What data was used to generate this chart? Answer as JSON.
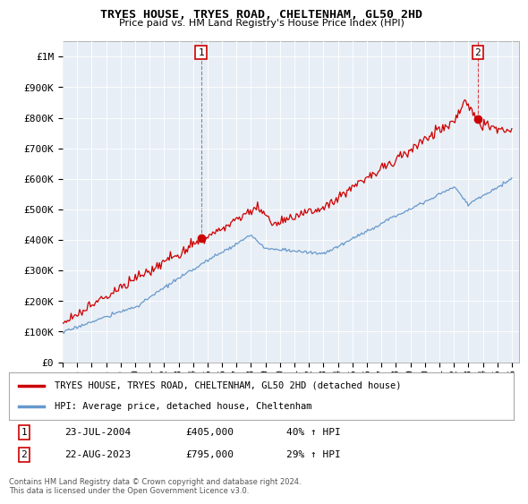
{
  "title": "TRYES HOUSE, TRYES ROAD, CHELTENHAM, GL50 2HD",
  "subtitle": "Price paid vs. HM Land Registry's House Price Index (HPI)",
  "ylabel_ticks": [
    "£0",
    "£100K",
    "£200K",
    "£300K",
    "£400K",
    "£500K",
    "£600K",
    "£700K",
    "£800K",
    "£900K",
    "£1M"
  ],
  "ytick_values": [
    0,
    100000,
    200000,
    300000,
    400000,
    500000,
    600000,
    700000,
    800000,
    900000,
    1000000
  ],
  "ylim": [
    0,
    1050000
  ],
  "xlim_start": 1995.0,
  "xlim_end": 2026.5,
  "xtick_years": [
    1995,
    1996,
    1997,
    1998,
    1999,
    2000,
    2001,
    2002,
    2003,
    2004,
    2005,
    2006,
    2007,
    2008,
    2009,
    2010,
    2011,
    2012,
    2013,
    2014,
    2015,
    2016,
    2017,
    2018,
    2019,
    2020,
    2021,
    2022,
    2023,
    2024,
    2025,
    2026
  ],
  "legend_line1_color": "#cc0000",
  "legend_line1_label": "TRYES HOUSE, TRYES ROAD, CHELTENHAM, GL50 2HD (detached house)",
  "legend_line2_color": "#6699cc",
  "legend_line2_label": "HPI: Average price, detached house, Cheltenham",
  "annotation1_date": "23-JUL-2004",
  "annotation1_price": "£405,000",
  "annotation1_hpi": "40% ↑ HPI",
  "annotation2_date": "22-AUG-2023",
  "annotation2_price": "£795,000",
  "annotation2_hpi": "29% ↑ HPI",
  "footer": "Contains HM Land Registry data © Crown copyright and database right 2024.\nThis data is licensed under the Open Government Licence v3.0.",
  "bg_color": "#ffffff",
  "plot_bg_color": "#e8eef5",
  "grid_color": "#ffffff",
  "sale1_x": 2004.55,
  "sale1_y": 405000,
  "sale2_x": 2023.64,
  "sale2_y": 795000
}
